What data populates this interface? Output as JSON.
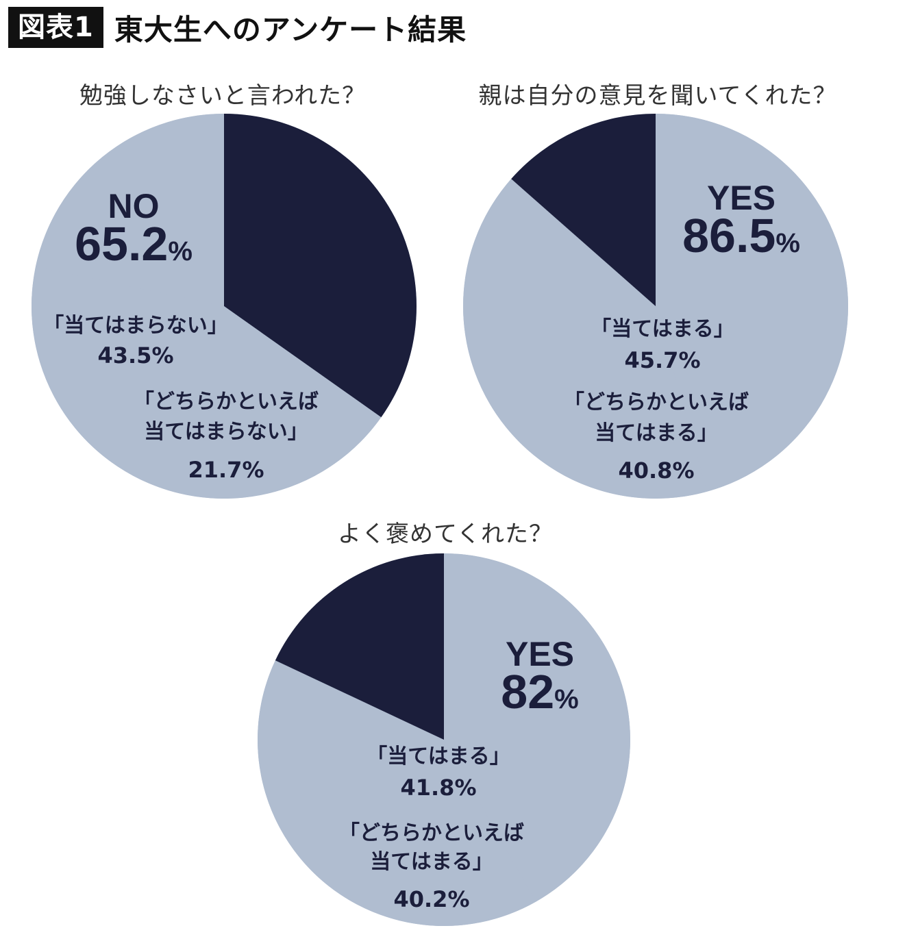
{
  "header": {
    "badge": "図表1",
    "title": "東大生へのアンケート結果"
  },
  "colors": {
    "dark": "#1b1e3b",
    "light": "#b0bdd0"
  },
  "chart_data": [
    {
      "type": "pie",
      "title": "勉強しなさいと言われた？",
      "main_label": "NO",
      "main_value": "65.2",
      "main_unit": "%",
      "slices": [
        {
          "label": "「当てはまらない」",
          "value": 43.5,
          "value_text": "43.5%"
        },
        {
          "label": "「どちらかといえば当てはまらない」",
          "value": 21.7,
          "value_text": "21.7%"
        },
        {
          "label": "",
          "value": 34.8
        }
      ]
    },
    {
      "type": "pie",
      "title": "親は自分の意見を聞いてくれた？",
      "main_label": "YES",
      "main_value": "86.5",
      "main_unit": "%",
      "slices": [
        {
          "label": "「当てはまる」",
          "value": 45.7,
          "value_text": "45.7%"
        },
        {
          "label": "「どちらかといえば当てはまる」",
          "value": 40.8,
          "value_text": "40.8%"
        },
        {
          "label": "",
          "value": 13.5
        }
      ]
    },
    {
      "type": "pie",
      "title": "よく褒めてくれた？",
      "main_label": "YES",
      "main_value": "82",
      "main_unit": "%",
      "slices": [
        {
          "label": "「当てはまる」",
          "value": 41.8,
          "value_text": "41.8%"
        },
        {
          "label": "「どちらかといえば当てはまる」",
          "value": 40.2,
          "value_text": "40.2%"
        },
        {
          "label": "",
          "value": 18.0
        }
      ]
    }
  ]
}
